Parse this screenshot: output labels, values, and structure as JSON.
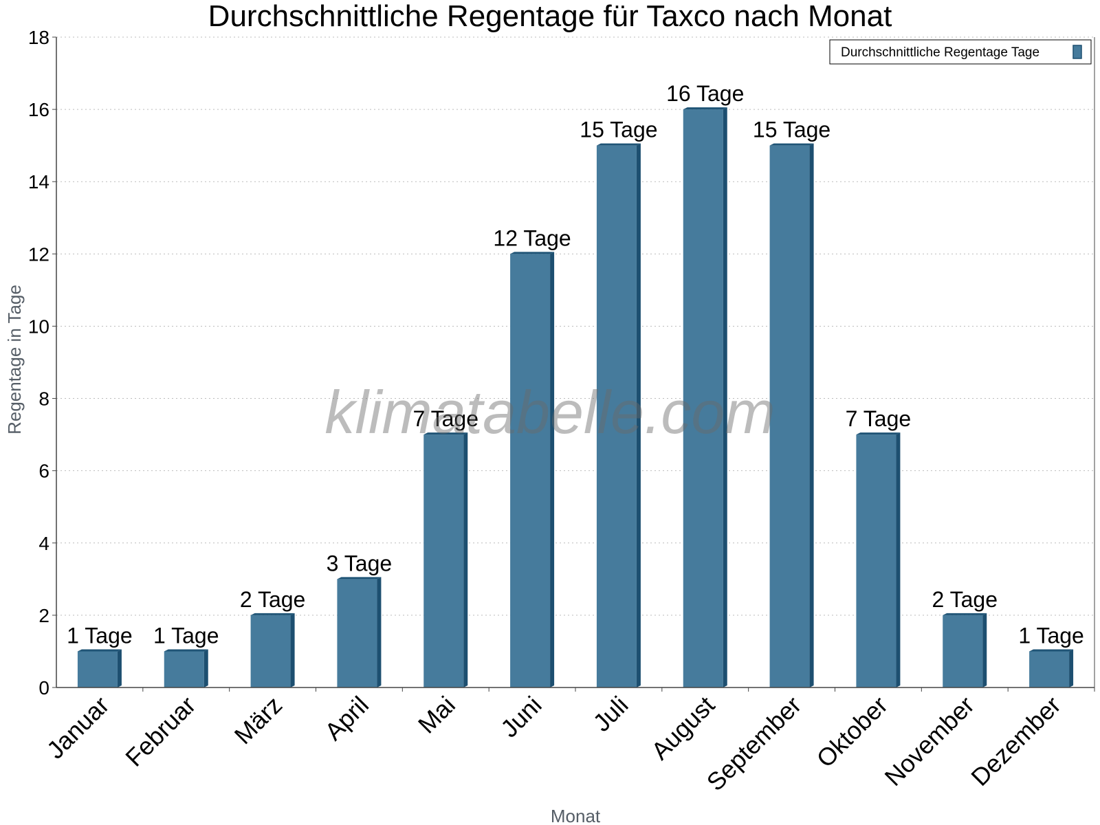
{
  "chart_data": {
    "type": "bar",
    "title": "Durchschnittliche Regentage für Taxco nach Monat",
    "xlabel": "Monat",
    "ylabel": "Regentage in Tage",
    "categories": [
      "Januar",
      "Februar",
      "März",
      "April",
      "Mai",
      "Juni",
      "Juli",
      "August",
      "September",
      "Oktober",
      "November",
      "Dezember"
    ],
    "series": [
      {
        "name": "Durchschnittliche Regentage Tage",
        "values": [
          1,
          1,
          2,
          3,
          7,
          12,
          15,
          16,
          15,
          7,
          2,
          1
        ],
        "labels": [
          "1 Tage",
          "1 Tage",
          "2 Tage",
          "3 Tage",
          "7 Tage",
          "12 Tage",
          "15 Tage",
          "16 Tage",
          "15 Tage",
          "7 Tage",
          "2 Tage",
          "1 Tage"
        ]
      }
    ],
    "ylim": [
      0,
      18
    ],
    "yticks": [
      0,
      2,
      4,
      6,
      8,
      10,
      12,
      14,
      16,
      18
    ],
    "grid": true,
    "legend_position": "top-right",
    "colors": {
      "bar_front": "#467b9c",
      "bar_side": "#1d4f70",
      "bar_top": "#1f5476",
      "grid": "#bbbbbb",
      "axis": "#444444"
    }
  },
  "watermark": "klimatabelle.com"
}
